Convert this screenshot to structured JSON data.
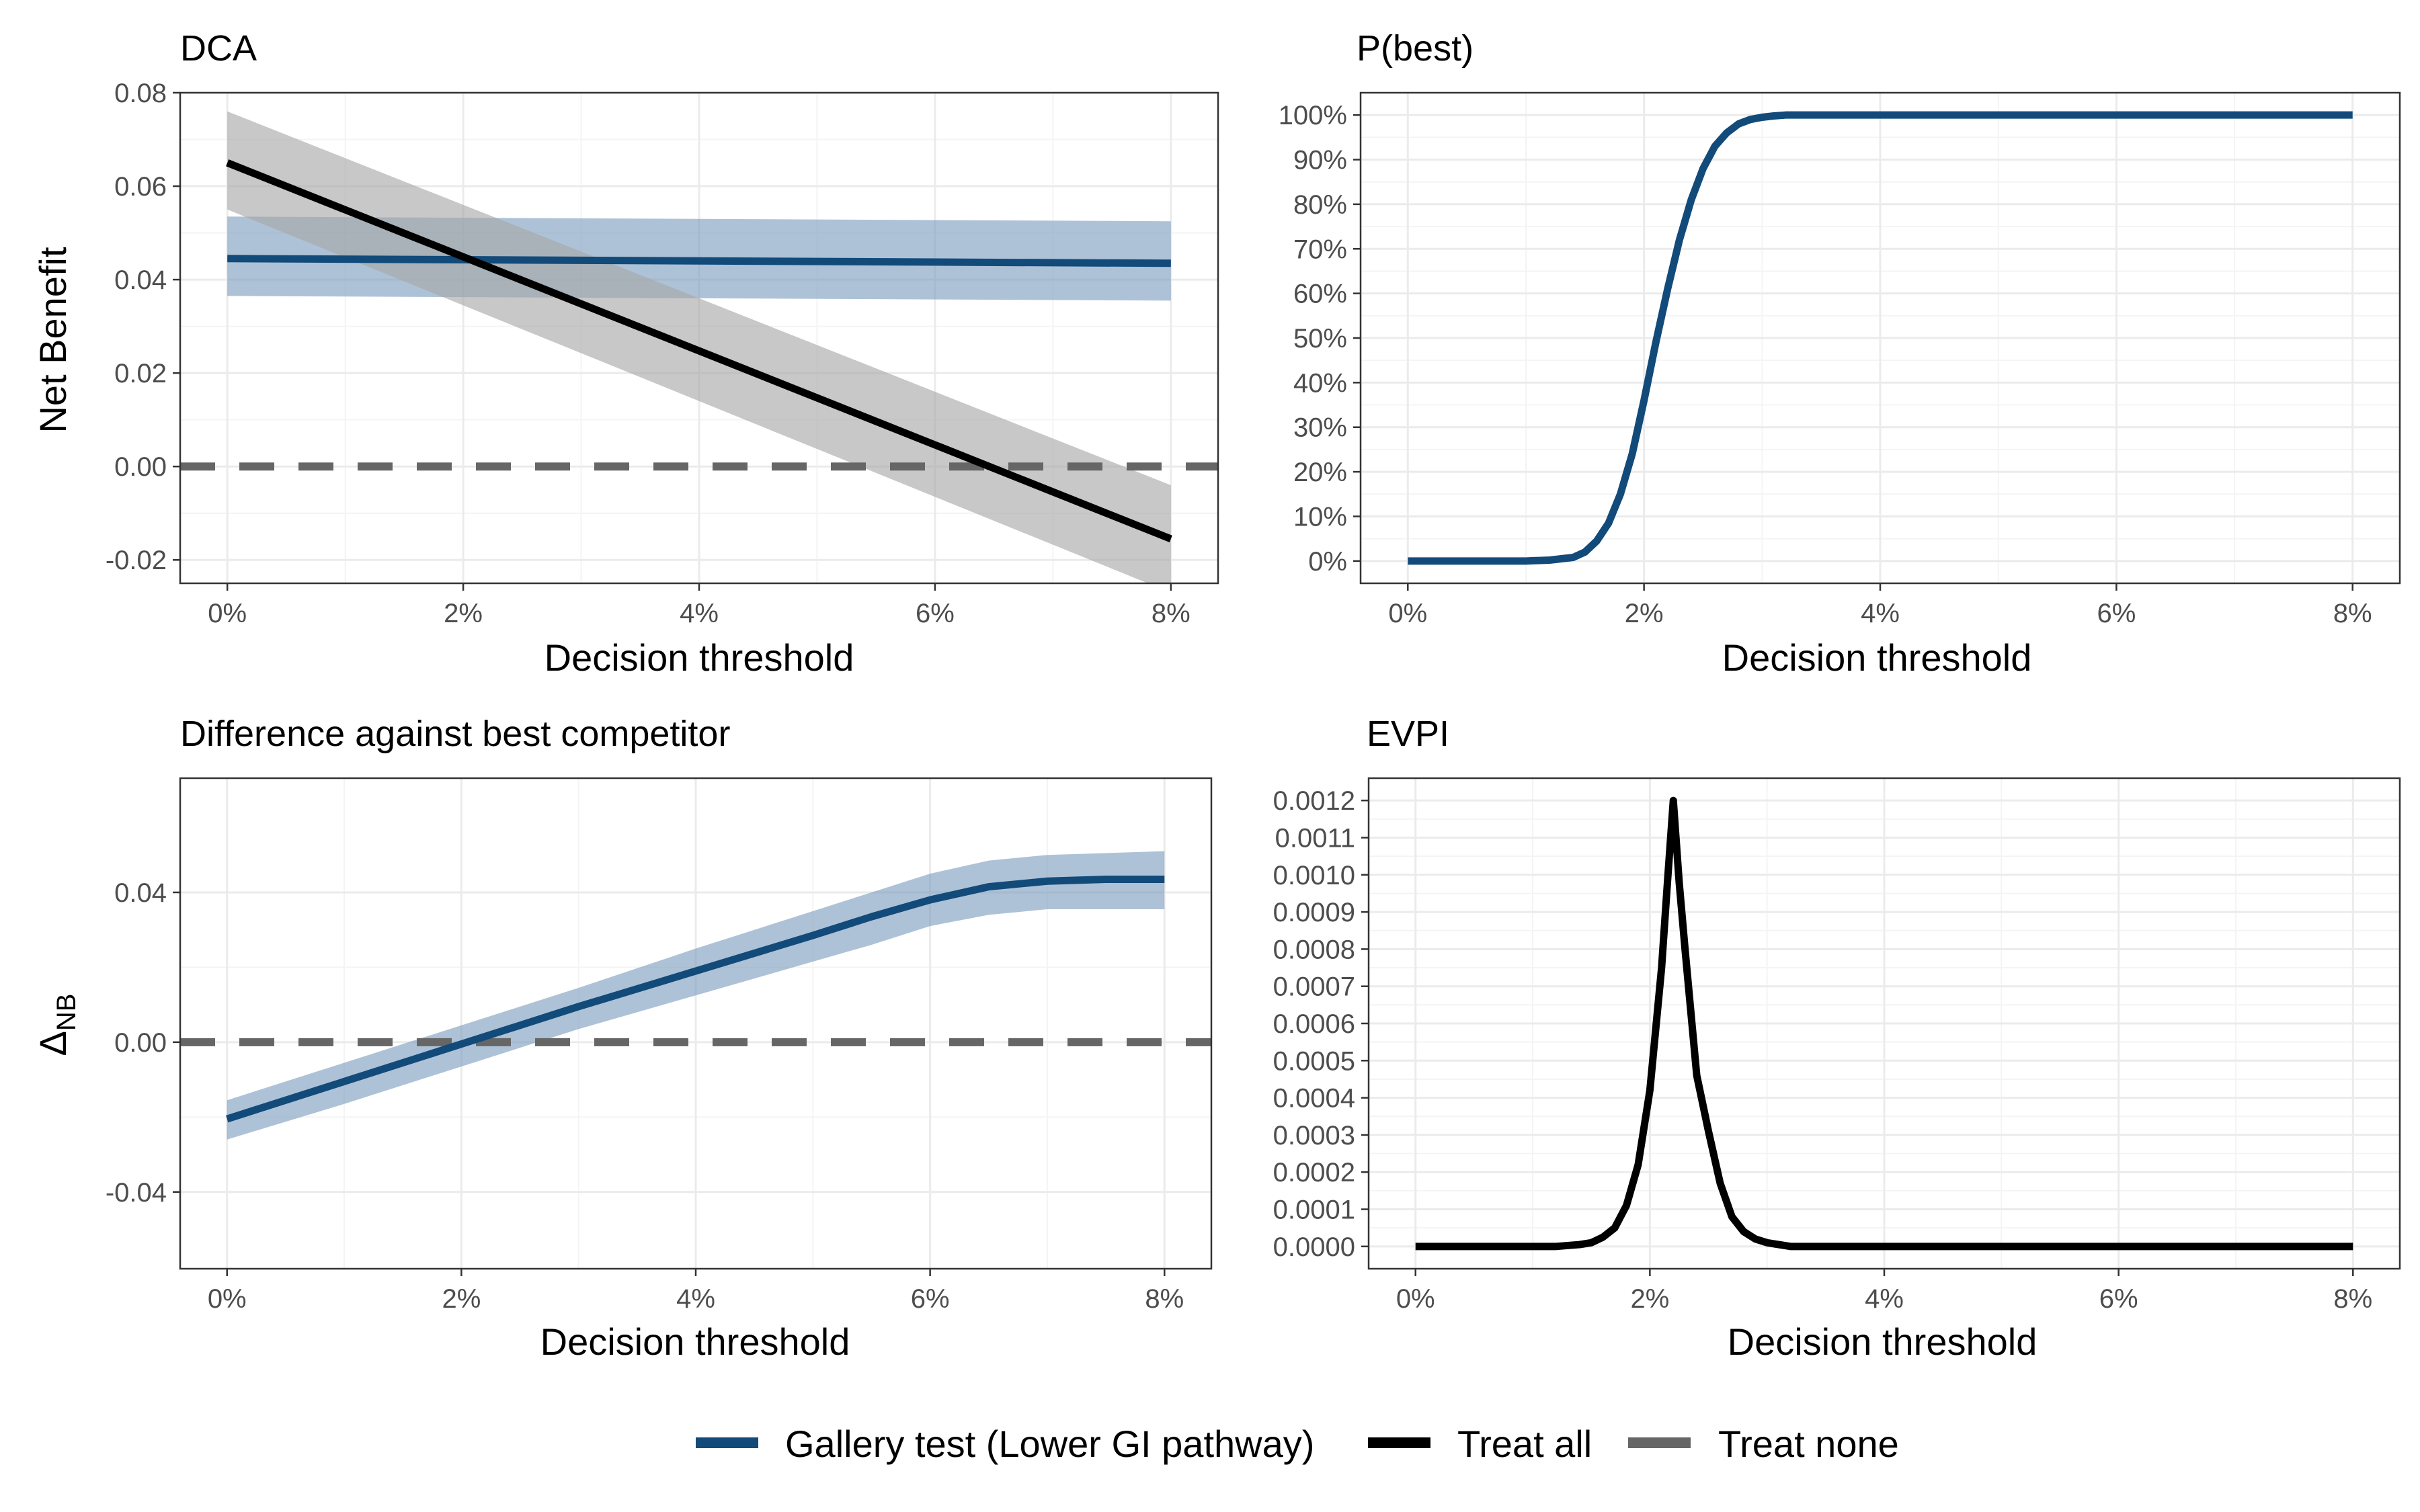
{
  "colors": {
    "gallery": "#124a7a",
    "gallery_band": "#7d9dbf",
    "treat_all": "#000000",
    "treat_all_band": "#a6a6a6",
    "treat_none": "#666666",
    "grid_major": "#ebebeb",
    "grid_minor": "#f4f4f4",
    "panel_border": "#333333",
    "tick_label": "#4d4d4d"
  },
  "legend": {
    "items": [
      {
        "key": "gallery",
        "label": "Gallery test (Lower GI pathway)",
        "color": "#124a7a",
        "style": "solid"
      },
      {
        "key": "treat_all",
        "label": "Treat all",
        "color": "#000000",
        "style": "solid"
      },
      {
        "key": "treat_none",
        "label": "Treat none",
        "color": "#666666",
        "style": "solid"
      }
    ]
  },
  "chart_data": [
    {
      "id": "dca",
      "type": "line",
      "title": "DCA",
      "xlabel": "Decision threshold",
      "ylabel": "Net Benefit",
      "xlim": [
        -0.004,
        0.084
      ],
      "ylim": [
        -0.025,
        0.08
      ],
      "x_ticks": [
        0,
        0.02,
        0.04,
        0.06,
        0.08
      ],
      "x_tick_labels": [
        "0%",
        "2%",
        "4%",
        "6%",
        "8%"
      ],
      "y_ticks": [
        -0.02,
        0,
        0.02,
        0.04,
        0.06,
        0.08
      ],
      "y_tick_labels": [
        "-0.02",
        "0.00",
        "0.02",
        "0.04",
        "0.06",
        "0.08"
      ],
      "grid": true,
      "series": [
        {
          "name": "Gallery test (Lower GI pathway)",
          "color_key": "gallery",
          "x": [
            0,
            0.08
          ],
          "y": [
            0.0445,
            0.0435
          ],
          "lower": [
            0.0365,
            0.0355
          ],
          "upper": [
            0.0535,
            0.0525
          ]
        },
        {
          "name": "Treat all",
          "color_key": "treat_all",
          "x": [
            0,
            0.08
          ],
          "y": [
            0.065,
            -0.0155
          ],
          "lower": [
            0.055,
            -0.027
          ],
          "upper": [
            0.076,
            -0.004
          ]
        },
        {
          "name": "Treat none",
          "color_key": "treat_none",
          "dashed": true,
          "x": [
            -0.004,
            0.084
          ],
          "y": [
            0,
            0
          ]
        }
      ]
    },
    {
      "id": "pbest",
      "type": "line",
      "title": "P(best)",
      "xlabel": "Decision threshold",
      "ylabel": "",
      "xlim": [
        -0.004,
        0.084
      ],
      "ylim": [
        -0.05,
        1.05
      ],
      "x_ticks": [
        0,
        0.02,
        0.04,
        0.06,
        0.08
      ],
      "x_tick_labels": [
        "0%",
        "2%",
        "4%",
        "6%",
        "8%"
      ],
      "y_ticks": [
        0,
        0.1,
        0.2,
        0.3,
        0.4,
        0.5,
        0.6,
        0.7,
        0.8,
        0.9,
        1.0
      ],
      "y_tick_labels": [
        "0%",
        "10%",
        "20%",
        "30%",
        "40%",
        "50%",
        "60%",
        "70%",
        "80%",
        "90%",
        "100%"
      ],
      "grid": true,
      "series": [
        {
          "name": "Gallery test (Lower GI pathway)",
          "color_key": "gallery",
          "x": [
            0,
            0.01,
            0.012,
            0.014,
            0.015,
            0.016,
            0.017,
            0.018,
            0.019,
            0.02,
            0.021,
            0.022,
            0.023,
            0.024,
            0.025,
            0.026,
            0.027,
            0.028,
            0.029,
            0.03,
            0.031,
            0.032,
            0.034,
            0.04,
            0.06,
            0.08
          ],
          "y": [
            0,
            0,
            0.002,
            0.008,
            0.02,
            0.045,
            0.085,
            0.15,
            0.24,
            0.36,
            0.49,
            0.61,
            0.72,
            0.81,
            0.88,
            0.93,
            0.96,
            0.98,
            0.99,
            0.995,
            0.998,
            1.0,
            1.0,
            1.0,
            1.0,
            1.0
          ]
        }
      ]
    },
    {
      "id": "diff",
      "type": "line",
      "title": "Difference against best competitor",
      "xlabel": "Decision threshold",
      "ylabel": "ΔNB",
      "xlim": [
        -0.004,
        0.084
      ],
      "ylim": [
        -0.0605,
        0.0705
      ],
      "x_ticks": [
        0,
        0.02,
        0.04,
        0.06,
        0.08
      ],
      "x_tick_labels": [
        "0%",
        "2%",
        "4%",
        "6%",
        "8%"
      ],
      "y_ticks": [
        -0.04,
        0,
        0.04
      ],
      "y_tick_labels": [
        "-0.04",
        "0.00",
        "0.04"
      ],
      "grid": true,
      "series": [
        {
          "name": "Gallery test (Lower GI pathway)",
          "color_key": "gallery",
          "x": [
            0,
            0.01,
            0.02,
            0.03,
            0.04,
            0.05,
            0.055,
            0.06,
            0.065,
            0.07,
            0.075,
            0.08
          ],
          "y": [
            -0.0205,
            -0.0105,
            -0.0005,
            0.0095,
            0.019,
            0.0285,
            0.0335,
            0.038,
            0.0415,
            0.043,
            0.0435,
            0.0435
          ],
          "lower": [
            -0.026,
            -0.0165,
            -0.0065,
            0.0035,
            0.0125,
            0.0215,
            0.026,
            0.031,
            0.034,
            0.0355,
            0.0355,
            0.0355
          ],
          "upper": [
            -0.0155,
            -0.0055,
            0.0045,
            0.0145,
            0.025,
            0.035,
            0.04,
            0.045,
            0.0485,
            0.05,
            0.0505,
            0.051
          ]
        },
        {
          "name": "Treat none",
          "color_key": "treat_none",
          "dashed": true,
          "x": [
            -0.004,
            0.084
          ],
          "y": [
            0,
            0
          ]
        }
      ]
    },
    {
      "id": "evpi",
      "type": "line",
      "title": "EVPI",
      "xlabel": "Decision threshold",
      "ylabel": "",
      "xlim": [
        -0.004,
        0.084
      ],
      "ylim": [
        -6e-05,
        0.00126
      ],
      "x_ticks": [
        0,
        0.02,
        0.04,
        0.06,
        0.08
      ],
      "x_tick_labels": [
        "0%",
        "2%",
        "4%",
        "6%",
        "8%"
      ],
      "y_ticks": [
        0,
        0.0001,
        0.0002,
        0.0003,
        0.0004,
        0.0005,
        0.0006,
        0.0007,
        0.0008,
        0.0009,
        0.001,
        0.0011,
        0.0012
      ],
      "y_tick_labels": [
        "0.0000",
        "0.0001",
        "0.0002",
        "0.0003",
        "0.0004",
        "0.0005",
        "0.0006",
        "0.0007",
        "0.0008",
        "0.0009",
        "0.0010",
        "0.0011",
        "0.0012"
      ],
      "grid": true,
      "series": [
        {
          "name": "Treat all",
          "color_key": "treat_all",
          "x": [
            0,
            0.012,
            0.014,
            0.015,
            0.016,
            0.017,
            0.018,
            0.019,
            0.02,
            0.021,
            0.0215,
            0.022,
            0.0225,
            0.023,
            0.024,
            0.025,
            0.026,
            0.027,
            0.028,
            0.029,
            0.03,
            0.031,
            0.032,
            0.034,
            0.04,
            0.08
          ],
          "y": [
            0,
            0,
            5e-06,
            1e-05,
            2.5e-05,
            5e-05,
            0.00011,
            0.00022,
            0.00042,
            0.00075,
            0.00098,
            0.0012,
            0.00098,
            0.0008,
            0.00046,
            0.00031,
            0.00017,
            8e-05,
            4e-05,
            2e-05,
            1e-05,
            5e-06,
            0,
            0,
            0,
            0
          ]
        }
      ]
    }
  ]
}
